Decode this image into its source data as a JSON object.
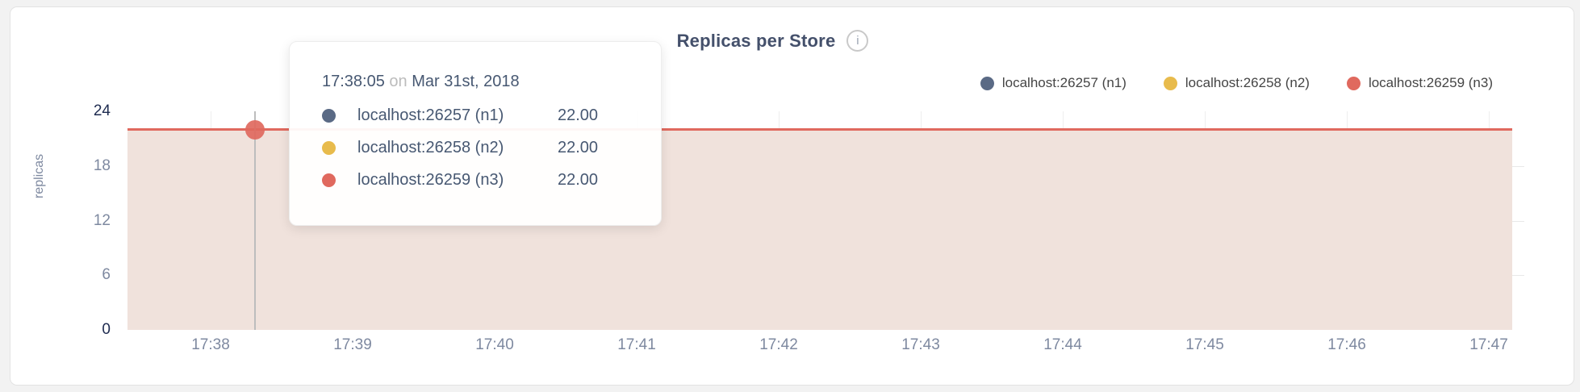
{
  "header": {
    "title": "Replicas per Store",
    "info_icon": "i"
  },
  "legend": {
    "items": [
      {
        "label": "localhost:26257 (n1)",
        "color": "#5a6a85"
      },
      {
        "label": "localhost:26258 (n2)",
        "color": "#e8bb4c"
      },
      {
        "label": "localhost:26259 (n3)",
        "color": "#e0695e"
      }
    ]
  },
  "tooltip": {
    "time": "17:38:05",
    "conjunction": "on",
    "date": "Mar 31st, 2018",
    "rows": [
      {
        "label": "localhost:26257 (n1)",
        "value": "22.00",
        "color": "#5a6a85"
      },
      {
        "label": "localhost:26258 (n2)",
        "value": "22.00",
        "color": "#e8bb4c"
      },
      {
        "label": "localhost:26259 (n3)",
        "value": "22.00",
        "color": "#e0695e"
      }
    ]
  },
  "chart_data": {
    "type": "area",
    "title": "Replicas per Store",
    "xlabel": "",
    "ylabel": "replicas",
    "ylim": [
      0,
      24
    ],
    "y_ticks": [
      0,
      6,
      12,
      18,
      24
    ],
    "grid_y_values": [
      6,
      12,
      18
    ],
    "x_ticks": [
      "17:38",
      "17:39",
      "17:40",
      "17:41",
      "17:42",
      "17:43",
      "17:44",
      "17:45",
      "17:46",
      "17:47"
    ],
    "grid": true,
    "legend_position": "top-right",
    "series": [
      {
        "name": "localhost:26257 (n1)",
        "color": "#5a6a85",
        "constant_value": 22.0
      },
      {
        "name": "localhost:26258 (n2)",
        "color": "#e8bb4c",
        "constant_value": 22.0
      },
      {
        "name": "localhost:26259 (n3)",
        "color": "#e0695e",
        "constant_value": 22.0
      }
    ],
    "note": "All three series overlap at a constant 22 replicas across the visible window 17:38-17:47",
    "hover": {
      "time": "17:38:05",
      "value": 22.0
    },
    "colors": {
      "visible_line": "#e0695e",
      "area_fill": "#f0e2dc",
      "axis_tick": "#7e89a0",
      "axis_end_tick": "#1e2b50",
      "hover_line": "#bdbdbd"
    }
  }
}
